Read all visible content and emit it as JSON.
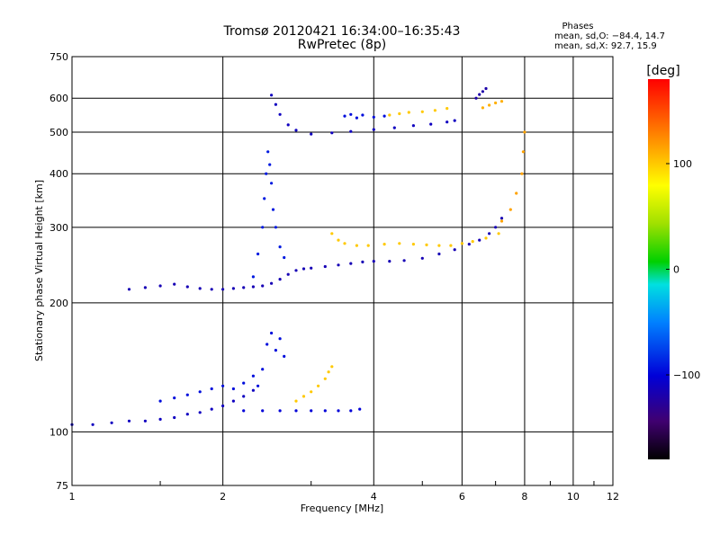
{
  "chart_data": {
    "type": "scatter",
    "title": "Tromsø 20120421 16:34:00–16:35:43",
    "subtitle": "RwPretec (8p)",
    "xlabel": "Frequency [MHz]",
    "ylabel": "Stationary phase Virtual Height [km]",
    "x_scale": "log",
    "y_scale": "log",
    "xlim": [
      1,
      12
    ],
    "ylim": [
      75,
      750
    ],
    "x_ticks": [
      1,
      2,
      4,
      6,
      8,
      10,
      12
    ],
    "x_tick_labels": [
      "1",
      "2",
      "4",
      "6",
      "8",
      "10",
      "12"
    ],
    "y_ticks": [
      75,
      100,
      200,
      300,
      400,
      500,
      600,
      750
    ],
    "y_tick_labels": [
      "75",
      "100",
      "200",
      "300",
      "400",
      "500",
      "600",
      "750"
    ],
    "grid": true,
    "phases": {
      "title": "Phases",
      "line_o": "mean, sd,O: −84.4, 14.7",
      "line_x": "mean, sd,X:  92.7, 15.9"
    },
    "colorbar": {
      "label": "[deg]",
      "range": [
        -180,
        180
      ],
      "ticks": [
        100,
        0,
        -100
      ],
      "tick_labels": [
        "100",
        "0",
        "−100"
      ]
    },
    "traces": [
      {
        "name": "lower-layer-o",
        "phase": -110,
        "points": [
          [
            1.0,
            104
          ],
          [
            1.1,
            104
          ],
          [
            1.2,
            105
          ],
          [
            1.3,
            106
          ],
          [
            1.4,
            106
          ],
          [
            1.5,
            107
          ],
          [
            1.6,
            108
          ],
          [
            1.7,
            110
          ],
          [
            1.8,
            111
          ],
          [
            1.9,
            113
          ],
          [
            2.0,
            115
          ],
          [
            2.1,
            118
          ],
          [
            2.2,
            121
          ],
          [
            2.3,
            125
          ]
        ]
      },
      {
        "name": "lower-layer-scatter",
        "phase": -95,
        "points": [
          [
            1.5,
            118
          ],
          [
            1.6,
            120
          ],
          [
            1.7,
            122
          ],
          [
            1.8,
            124
          ],
          [
            1.9,
            126
          ],
          [
            2.0,
            128
          ],
          [
            2.1,
            126
          ],
          [
            2.2,
            130
          ],
          [
            2.3,
            135
          ],
          [
            2.35,
            128
          ],
          [
            2.4,
            140
          ],
          [
            2.45,
            160
          ],
          [
            2.5,
            170
          ],
          [
            2.55,
            155
          ],
          [
            2.6,
            165
          ],
          [
            2.65,
            150
          ]
        ]
      },
      {
        "name": "lower-layer-flat",
        "phase": -100,
        "points": [
          [
            2.2,
            112
          ],
          [
            2.4,
            112
          ],
          [
            2.6,
            112
          ],
          [
            2.8,
            112
          ],
          [
            3.0,
            112
          ],
          [
            3.2,
            112
          ],
          [
            3.4,
            112
          ],
          [
            3.6,
            112
          ],
          [
            3.75,
            113
          ]
        ]
      },
      {
        "name": "lower-layer-x",
        "phase": 100,
        "points": [
          [
            2.8,
            118
          ],
          [
            2.9,
            121
          ],
          [
            3.0,
            124
          ],
          [
            3.1,
            128
          ],
          [
            3.2,
            133
          ],
          [
            3.25,
            138
          ],
          [
            3.3,
            142
          ]
        ]
      },
      {
        "name": "F-layer-o",
        "phase": -115,
        "points": [
          [
            1.3,
            215
          ],
          [
            1.4,
            217
          ],
          [
            1.5,
            219
          ],
          [
            1.6,
            221
          ],
          [
            1.7,
            218
          ],
          [
            1.8,
            216
          ],
          [
            1.9,
            215
          ],
          [
            2.0,
            215
          ],
          [
            2.1,
            216
          ],
          [
            2.2,
            217
          ],
          [
            2.3,
            218
          ],
          [
            2.4,
            219
          ],
          [
            2.5,
            222
          ],
          [
            2.6,
            227
          ],
          [
            2.7,
            233
          ],
          [
            2.8,
            238
          ],
          [
            2.9,
            240
          ],
          [
            3.0,
            241
          ],
          [
            3.2,
            243
          ],
          [
            3.4,
            245
          ],
          [
            3.6,
            247
          ],
          [
            3.8,
            249
          ],
          [
            4.0,
            250
          ],
          [
            4.3,
            250
          ],
          [
            4.6,
            251
          ],
          [
            5.0,
            254
          ],
          [
            5.4,
            260
          ],
          [
            5.8,
            266
          ],
          [
            6.2,
            274
          ],
          [
            6.5,
            280
          ],
          [
            6.8,
            290
          ],
          [
            7.0,
            300
          ],
          [
            7.2,
            315
          ]
        ]
      },
      {
        "name": "F-layer-spike",
        "phase": -90,
        "points": [
          [
            2.3,
            230
          ],
          [
            2.35,
            260
          ],
          [
            2.4,
            300
          ],
          [
            2.42,
            350
          ],
          [
            2.44,
            400
          ],
          [
            2.46,
            450
          ],
          [
            2.48,
            420
          ],
          [
            2.5,
            380
          ],
          [
            2.52,
            330
          ],
          [
            2.55,
            300
          ],
          [
            2.6,
            270
          ],
          [
            2.65,
            255
          ]
        ]
      },
      {
        "name": "F-layer-x",
        "phase": 100,
        "points": [
          [
            3.3,
            290
          ],
          [
            3.4,
            280
          ],
          [
            3.5,
            275
          ],
          [
            3.7,
            272
          ],
          [
            3.9,
            272
          ],
          [
            4.2,
            274
          ],
          [
            4.5,
            275
          ],
          [
            4.8,
            274
          ],
          [
            5.1,
            273
          ],
          [
            5.4,
            272
          ],
          [
            5.7,
            272
          ],
          [
            6.0,
            275
          ],
          [
            6.3,
            278
          ],
          [
            6.7,
            283
          ],
          [
            7.1,
            290
          ]
        ]
      },
      {
        "name": "F-layer-x-vertical",
        "phase": 115,
        "points": [
          [
            7.2,
            310
          ],
          [
            7.5,
            330
          ],
          [
            7.7,
            360
          ],
          [
            7.9,
            400
          ],
          [
            7.95,
            450
          ],
          [
            8.0,
            500
          ]
        ]
      },
      {
        "name": "upper-trace-o",
        "phase": -110,
        "points": [
          [
            2.5,
            610
          ],
          [
            2.55,
            580
          ],
          [
            2.6,
            550
          ],
          [
            2.7,
            520
          ],
          [
            2.8,
            505
          ],
          [
            3.0,
            495
          ],
          [
            3.3,
            498
          ],
          [
            3.6,
            502
          ],
          [
            4.0,
            507
          ],
          [
            4.4,
            512
          ],
          [
            4.8,
            518
          ],
          [
            5.2,
            522
          ],
          [
            5.6,
            528
          ],
          [
            5.8,
            532
          ]
        ]
      },
      {
        "name": "upper-trace-scatter",
        "phase": -95,
        "points": [
          [
            3.5,
            545
          ],
          [
            3.6,
            550
          ],
          [
            3.7,
            540
          ],
          [
            3.8,
            548
          ],
          [
            4.0,
            542
          ],
          [
            4.2,
            545
          ]
        ]
      },
      {
        "name": "upper-trace-x",
        "phase": 100,
        "points": [
          [
            4.3,
            548
          ],
          [
            4.5,
            552
          ],
          [
            4.7,
            556
          ],
          [
            5.0,
            558
          ],
          [
            5.3,
            562
          ],
          [
            5.6,
            568
          ]
        ]
      },
      {
        "name": "upper-right-x",
        "phase": 110,
        "points": [
          [
            6.6,
            570
          ],
          [
            6.8,
            578
          ],
          [
            7.0,
            585
          ],
          [
            7.2,
            590
          ]
        ]
      },
      {
        "name": "upper-right-o",
        "phase": -120,
        "points": [
          [
            6.4,
            600
          ],
          [
            6.5,
            612
          ],
          [
            6.6,
            622
          ],
          [
            6.7,
            632
          ]
        ]
      }
    ]
  }
}
